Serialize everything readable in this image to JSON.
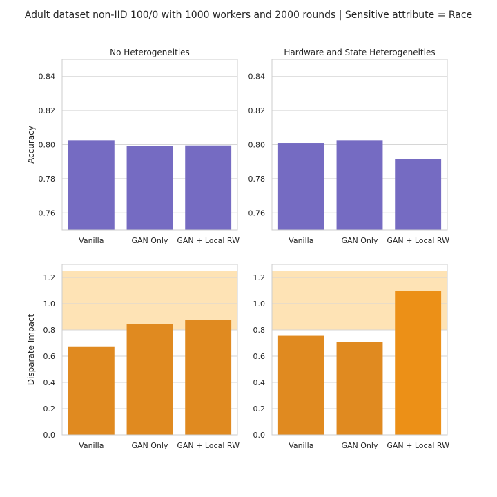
{
  "figure": {
    "title": "Adult dataset non-IID 100/0 with 1000 workers and 2000 rounds | Sensitive attribute = Race"
  },
  "colors": {
    "accuracy_bar": "#756bc2",
    "disparate_bar": "#e08a20",
    "disparate_bar_highlight": "#ec9017",
    "fair_band": "#fee3b5",
    "grid": "#d6d6d6",
    "frame": "#cccccc"
  },
  "chart_data": [
    {
      "type": "bar",
      "title": "No Heterogeneities",
      "xlabel": "",
      "ylabel": "Accuracy",
      "categories": [
        "Vanilla",
        "GAN Only",
        "GAN + Local RW"
      ],
      "values": [
        0.8025,
        0.799,
        0.7995
      ],
      "ylim": [
        0.75,
        0.85
      ],
      "yticks": [
        "0.76",
        "0.78",
        "0.80",
        "0.82",
        "0.84"
      ],
      "grid": true
    },
    {
      "type": "bar",
      "title": "Hardware and State Heterogeneities",
      "xlabel": "",
      "ylabel": "",
      "categories": [
        "Vanilla",
        "GAN Only",
        "GAN + Local RW"
      ],
      "values": [
        0.801,
        0.8025,
        0.7915
      ],
      "ylim": [
        0.75,
        0.85
      ],
      "yticks": [
        "0.76",
        "0.78",
        "0.80",
        "0.82",
        "0.84"
      ],
      "grid": true
    },
    {
      "type": "bar",
      "title": "",
      "xlabel": "",
      "ylabel": "Disparate Impact",
      "categories": [
        "Vanilla",
        "GAN Only",
        "GAN + Local RW"
      ],
      "values": [
        0.675,
        0.845,
        0.875
      ],
      "ylim": [
        0,
        1.3
      ],
      "yticks": [
        "0.0",
        "0.2",
        "0.4",
        "0.6",
        "0.8",
        "1.0",
        "1.2"
      ],
      "fair_band": [
        0.8,
        1.25
      ],
      "grid": true
    },
    {
      "type": "bar",
      "title": "",
      "xlabel": "",
      "ylabel": "",
      "categories": [
        "Vanilla",
        "GAN Only",
        "GAN + Local RW"
      ],
      "values": [
        0.755,
        0.71,
        1.095
      ],
      "ylim": [
        0,
        1.3
      ],
      "yticks": [
        "0.0",
        "0.2",
        "0.4",
        "0.6",
        "0.8",
        "1.0",
        "1.2"
      ],
      "fair_band": [
        0.8,
        1.25
      ],
      "grid": true
    }
  ]
}
